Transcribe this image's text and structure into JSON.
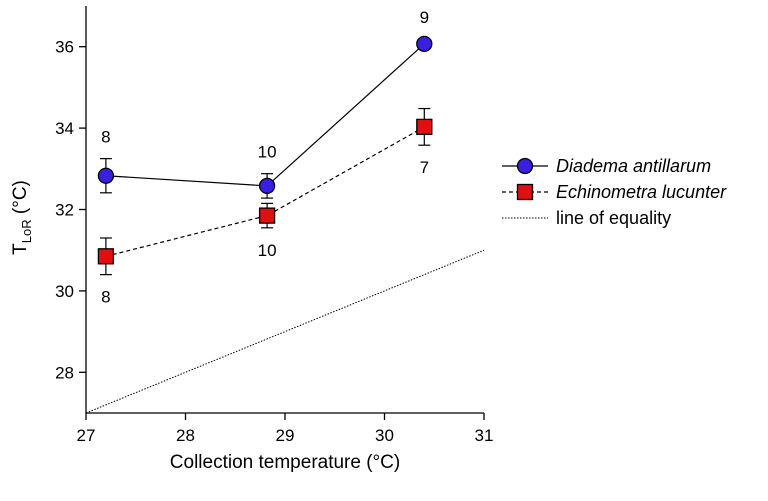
{
  "chart_data": {
    "type": "line",
    "xlabel": "Collection temperature (°C)",
    "ylabel": {
      "main": "T",
      "sub": "LoR",
      "unit": " (°C)"
    },
    "xlim": [
      27,
      31
    ],
    "ylim": [
      27,
      37
    ],
    "x_ticks": [
      "27",
      "28",
      "29",
      "30",
      "31"
    ],
    "y_ticks": [
      "28",
      "30",
      "32",
      "34",
      "36"
    ],
    "x_tick_values": [
      27,
      28,
      29,
      30,
      31
    ],
    "y_tick_values": [
      28,
      30,
      32,
      34,
      36
    ],
    "series": [
      {
        "name": "Diadema antillarum",
        "marker": "circle",
        "color": "#3b1fe0",
        "line_style": "solid",
        "points": [
          {
            "x": 27.2,
            "y": 32.83,
            "err": 0.42,
            "n": "8",
            "n_pos": "above"
          },
          {
            "x": 28.82,
            "y": 32.58,
            "err": 0.3,
            "n": "10",
            "n_pos": "above"
          },
          {
            "x": 30.4,
            "y": 36.07,
            "err": 0.12,
            "n": "9",
            "n_pos": "above"
          }
        ]
      },
      {
        "name": "Echinometra lucunter",
        "marker": "square",
        "color": "#e01010",
        "line_style": "dashed",
        "points": [
          {
            "x": 27.2,
            "y": 30.85,
            "err": 0.45,
            "n": "8",
            "n_pos": "below"
          },
          {
            "x": 28.82,
            "y": 31.85,
            "err": 0.3,
            "n": "10",
            "n_pos": "below"
          },
          {
            "x": 30.4,
            "y": 34.03,
            "err": 0.45,
            "n": "7",
            "n_pos": "below"
          }
        ]
      }
    ],
    "reference_line": {
      "name": "line of equality",
      "line_style": "dotted",
      "from": [
        27,
        27
      ],
      "to": [
        31,
        31
      ]
    },
    "legend_position": "right"
  }
}
